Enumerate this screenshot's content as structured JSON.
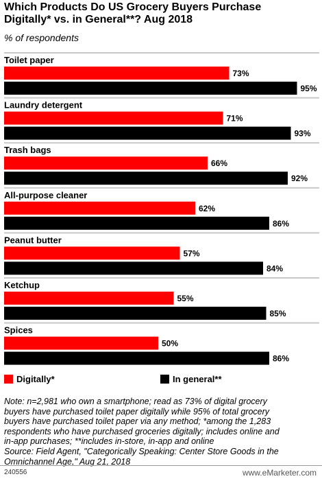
{
  "title_lines": [
    "Which Products Do US Grocery Buyers Purchase",
    "Digitally* vs. in General**? Aug 2018"
  ],
  "subtitle": "% of respondents",
  "colors": {
    "digitally": "#ff0000",
    "in_general": "#000000",
    "divider": "#c8c8c8"
  },
  "chart_data": {
    "type": "bar",
    "orientation": "horizontal",
    "categories": [
      "Toilet paper",
      "Laundry detergent",
      "Trash bags",
      "All-purpose cleaner",
      "Peanut butter",
      "Ketchup",
      "Spices"
    ],
    "series": [
      {
        "name": "Digitally*",
        "values": [
          73,
          71,
          66,
          62,
          57,
          55,
          50
        ],
        "labels": [
          "73%",
          "71%",
          "66%",
          "62%",
          "57%",
          "55%",
          "50%"
        ]
      },
      {
        "name": "In general**",
        "values": [
          95,
          93,
          92,
          86,
          84,
          85,
          86
        ],
        "labels": [
          "95%",
          "93%",
          "92%",
          "86%",
          "84%",
          "85%",
          "86%"
        ]
      }
    ],
    "xlim": [
      0,
      100
    ],
    "grid": false,
    "legend_position": "bottom"
  },
  "legend": {
    "digitally": "Digitally*",
    "in_general": "In general**"
  },
  "note_lines": [
    "Note: n=2,981 who own a smartphone; read as 73% of digital grocery",
    "buyers have purchased toilet paper digitally while 95% of total grocery",
    "buyers have purchased toilet paper via any method; *among the 1,283",
    "respondents who have purchased groceries digitally; includes online and",
    "in-app purchases; **includes in-store, in-app and online",
    "Source: Field Agent, \"Categorically Speaking: Center Store Goods in the",
    "Omnichannel Age,\" Aug 21, 2018"
  ],
  "footer": {
    "id": "240556",
    "brand": "www.eMarketer.com"
  }
}
